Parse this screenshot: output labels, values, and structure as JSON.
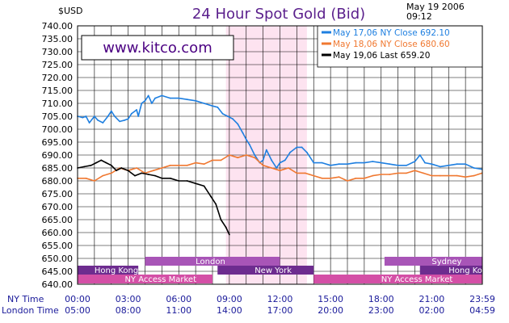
{
  "chart_data": {
    "type": "line",
    "title": "24 Hour Spot Gold (Bid)",
    "ylabel": "$USD",
    "date_line1": "May  19  2006",
    "date_line2": "09:12",
    "watermark": "www.kitco.com",
    "ylim": [
      640,
      740
    ],
    "y_ticks": [
      "740.00",
      "735.00",
      "730.00",
      "725.00",
      "720.00",
      "715.00",
      "710.00",
      "705.00",
      "700.00",
      "695.00",
      "690.00",
      "685.00",
      "680.00",
      "675.00",
      "670.00",
      "665.00",
      "660.00",
      "655.00",
      "650.00",
      "645.00",
      "640.00"
    ],
    "x_row1_label": "NY Time",
    "x_row2_label": "London Time",
    "x_ticks_ny": [
      "00:00",
      "03:00",
      "06:00",
      "09:00",
      "12:00",
      "15:00",
      "18:00",
      "21:00",
      "23:59"
    ],
    "x_ticks_london": [
      "05:00",
      "08:00",
      "11:00",
      "14:00",
      "17:00",
      "20:00",
      "23:00",
      "02:00",
      "04:59"
    ],
    "highlight_band": [
      8.8,
      13.6
    ],
    "series": [
      {
        "name": "May  17,06  NY  Close  692.10",
        "color": "#1e7fe0",
        "x": [
          0,
          0.3,
          0.5,
          0.7,
          1,
          1.2,
          1.5,
          1.8,
          2,
          2.2,
          2.5,
          2.8,
          3,
          3.2,
          3.5,
          3.6,
          3.8,
          4,
          4.2,
          4.4,
          4.6,
          5,
          5.5,
          6,
          6.5,
          7,
          7.5,
          8,
          8.3,
          8.6,
          8.9,
          9.2,
          9.5,
          9.8,
          10,
          10.2,
          10.5,
          10.8,
          11,
          11.2,
          11.5,
          11.8,
          12,
          12.3,
          12.6,
          13,
          13.3,
          13.6,
          14,
          14.5,
          15,
          15.5,
          16,
          16.5,
          17,
          17.5,
          18,
          18.5,
          19,
          19.5,
          20,
          20.3,
          20.6,
          21,
          21.5,
          22,
          22.5,
          23,
          23.5,
          23.98
        ],
        "y": [
          705,
          704.5,
          705,
          702.5,
          705,
          703.5,
          702.5,
          705,
          707,
          705,
          703,
          703.5,
          704,
          706,
          707.5,
          705,
          710,
          711,
          713,
          710,
          712,
          713,
          712,
          712,
          711.5,
          711,
          710,
          709,
          708.5,
          706,
          705,
          704,
          702,
          698.5,
          696,
          694,
          690,
          687,
          688,
          692,
          688,
          685,
          687,
          688,
          691,
          693,
          693,
          691,
          687,
          687,
          686,
          686.5,
          686.5,
          687,
          687,
          687.5,
          687,
          686.5,
          686,
          686,
          687.5,
          690,
          687,
          686.5,
          685.5,
          686,
          686.5,
          686.5,
          685,
          684.5
        ]
      },
      {
        "name": "May  18,06  NY  Close  680.60",
        "color": "#f07830",
        "x": [
          0,
          0.5,
          1,
          1.5,
          2,
          2.5,
          3,
          3.5,
          4,
          4.5,
          5,
          5.5,
          6,
          6.5,
          7,
          7.5,
          8,
          8.5,
          9,
          9.5,
          10,
          10.5,
          11,
          11.5,
          12,
          12.5,
          13,
          13.5,
          14,
          14.5,
          15,
          15.5,
          16,
          16.5,
          17,
          17.5,
          18,
          18.5,
          19,
          19.5,
          20,
          20.5,
          21,
          21.5,
          22,
          22.5,
          23,
          23.5,
          23.98
        ],
        "y": [
          681,
          681,
          680,
          682,
          683,
          685,
          684,
          685,
          683,
          684,
          685,
          686,
          686,
          686,
          687,
          686.5,
          688,
          688,
          690,
          689,
          690,
          689,
          686,
          685,
          684,
          685,
          683,
          683,
          682,
          681,
          681,
          681.5,
          680,
          681,
          681,
          682,
          682.5,
          682.5,
          683,
          683,
          684,
          683,
          682,
          682,
          682,
          682,
          681.5,
          682,
          683
        ]
      },
      {
        "name": "May  19,06  Last  659.20",
        "color": "#000000",
        "x": [
          0,
          0.4,
          0.8,
          1.1,
          1.4,
          1.7,
          2,
          2.3,
          2.6,
          3,
          3.4,
          3.8,
          4.2,
          4.6,
          5,
          5.5,
          6,
          6.5,
          7,
          7.5,
          7.9,
          8.2,
          8.5,
          8.8,
          9
        ],
        "y": [
          685,
          685.5,
          686,
          687,
          688,
          687,
          686,
          684,
          685,
          684,
          682,
          683,
          682.5,
          682,
          681,
          681,
          680,
          680,
          679,
          678,
          674,
          671,
          665,
          662,
          659.2
        ]
      }
    ],
    "sessions": [
      {
        "name": "London",
        "row": 0,
        "start": 4.0,
        "end": 12.0,
        "color": "#a855b7",
        "label_at": 7.0
      },
      {
        "name": "Sydney",
        "row": 0,
        "start": 18.2,
        "end": 24.0,
        "color": "#a855b7",
        "label_at": 21.0
      },
      {
        "name": "Hong  Kong",
        "row": 1,
        "start": 0.0,
        "end": 3.6,
        "color": "#6d2c8f",
        "label_at": 1.0
      },
      {
        "name": "New  York",
        "row": 1,
        "start": 8.3,
        "end": 14.0,
        "color": "#6d2c8f",
        "label_at": 10.5
      },
      {
        "name": "Hong  Kong",
        "row": 1,
        "start": 20.3,
        "end": 24.0,
        "color": "#6d2c8f",
        "label_at": 22.0
      },
      {
        "name": "NY  Access  Market",
        "row": 2,
        "start": 0.0,
        "end": 8.0,
        "color": "#d44fa6",
        "label_at": 2.8
      },
      {
        "name": "NY  Access  Market",
        "row": 2,
        "start": 14.0,
        "end": 24.0,
        "color": "#d44fa6",
        "label_at": 18.0
      }
    ]
  }
}
